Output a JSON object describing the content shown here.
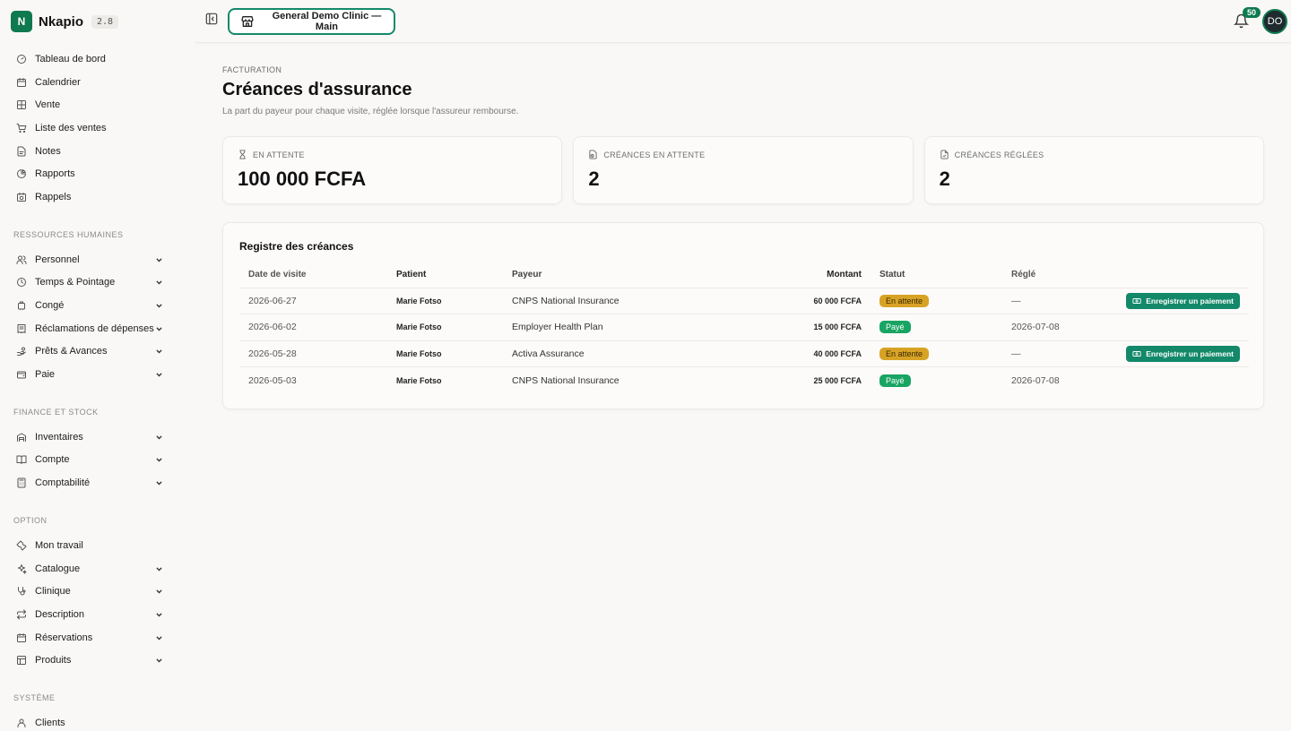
{
  "app": {
    "name": "Nkapio",
    "version": "2.8"
  },
  "sidebar": {
    "main_items": [
      {
        "label": "Tableau de bord",
        "icon": "dashboard-icon",
        "expandable": false
      },
      {
        "label": "Calendrier",
        "icon": "calendar-icon",
        "expandable": false
      },
      {
        "label": "Vente",
        "icon": "grid-icon",
        "expandable": false
      },
      {
        "label": "Liste des ventes",
        "icon": "cart-icon",
        "expandable": false
      },
      {
        "label": "Notes",
        "icon": "notes-icon",
        "expandable": false
      },
      {
        "label": "Rapports",
        "icon": "pie-icon",
        "expandable": false
      },
      {
        "label": "Rappels",
        "icon": "calendar-clock-icon",
        "expandable": false
      }
    ],
    "sections": [
      {
        "title": "RESSOURCES HUMAINES",
        "items": [
          {
            "label": "Personnel",
            "icon": "users-icon"
          },
          {
            "label": "Temps & Pointage",
            "icon": "clock-icon"
          },
          {
            "label": "Congé",
            "icon": "luggage-icon"
          },
          {
            "label": "Réclamations de dépenses",
            "icon": "receipt-icon"
          },
          {
            "label": "Prêts & Avances",
            "icon": "hand-coins-icon"
          },
          {
            "label": "Paie",
            "icon": "wallet-icon"
          }
        ]
      },
      {
        "title": "FINANCE ET STOCK",
        "items": [
          {
            "label": "Inventaires",
            "icon": "warehouse-icon"
          },
          {
            "label": "Compte",
            "icon": "book-icon"
          },
          {
            "label": "Comptabilité",
            "icon": "calculator-icon"
          }
        ]
      },
      {
        "title": "OPTION",
        "items": [
          {
            "label": "Mon travail",
            "icon": "wrench-icon",
            "expandable": false
          },
          {
            "label": "Catalogue",
            "icon": "sparkles-icon"
          },
          {
            "label": "Clinique",
            "icon": "stethoscope-icon"
          },
          {
            "label": "Description",
            "icon": "repeat-icon"
          },
          {
            "label": "Réservations",
            "icon": "calendar-icon"
          },
          {
            "label": "Produits",
            "icon": "box-icon"
          }
        ]
      },
      {
        "title": "SYSTÈME",
        "items": [
          {
            "label": "Clients",
            "icon": "user-icon",
            "expandable": false
          }
        ]
      }
    ]
  },
  "topbar": {
    "clinic_label": "General Demo Clinic — Main",
    "notification_count": "50",
    "avatar_initials": "DO"
  },
  "page": {
    "eyebrow": "FACTURATION",
    "title": "Créances d'assurance",
    "subtitle": "La part du payeur pour chaque visite, réglée lorsque l'assureur rembourse."
  },
  "stats": [
    {
      "label": "EN ATTENTE",
      "value": "100 000 FCFA",
      "icon": "hourglass-icon"
    },
    {
      "label": "CRÉANCES EN ATTENTE",
      "value": "2",
      "icon": "file-clock-icon"
    },
    {
      "label": "CRÉANCES RÉGLÉES",
      "value": "2",
      "icon": "file-check-icon"
    }
  ],
  "register": {
    "title": "Registre des créances",
    "columns": [
      "Date de visite",
      "Patient",
      "Payeur",
      "Montant",
      "Statut",
      "Réglé"
    ],
    "rows": [
      {
        "date": "2026-06-27",
        "patient": "Marie Fotso",
        "payer": "CNPS National Insurance",
        "amount": "60 000 FCFA",
        "status": "En attente",
        "status_type": "pending",
        "settled": "—",
        "action": "Enregistrer un paiement"
      },
      {
        "date": "2026-06-02",
        "patient": "Marie Fotso",
        "payer": "Employer Health Plan",
        "amount": "15 000 FCFA",
        "status": "Payé",
        "status_type": "paid",
        "settled": "2026-07-08",
        "action": ""
      },
      {
        "date": "2026-05-28",
        "patient": "Marie Fotso",
        "payer": "Activa Assurance",
        "amount": "40 000 FCFA",
        "status": "En attente",
        "status_type": "pending",
        "settled": "—",
        "action": "Enregistrer un paiement"
      },
      {
        "date": "2026-05-03",
        "patient": "Marie Fotso",
        "payer": "CNPS National Insurance",
        "amount": "25 000 FCFA",
        "status": "Payé",
        "status_type": "paid",
        "settled": "2026-07-08",
        "action": ""
      }
    ]
  },
  "colors": {
    "accent": "#13896a",
    "brand": "#0f7a4f",
    "pending": "#d8a325",
    "paid": "#19a463"
  }
}
